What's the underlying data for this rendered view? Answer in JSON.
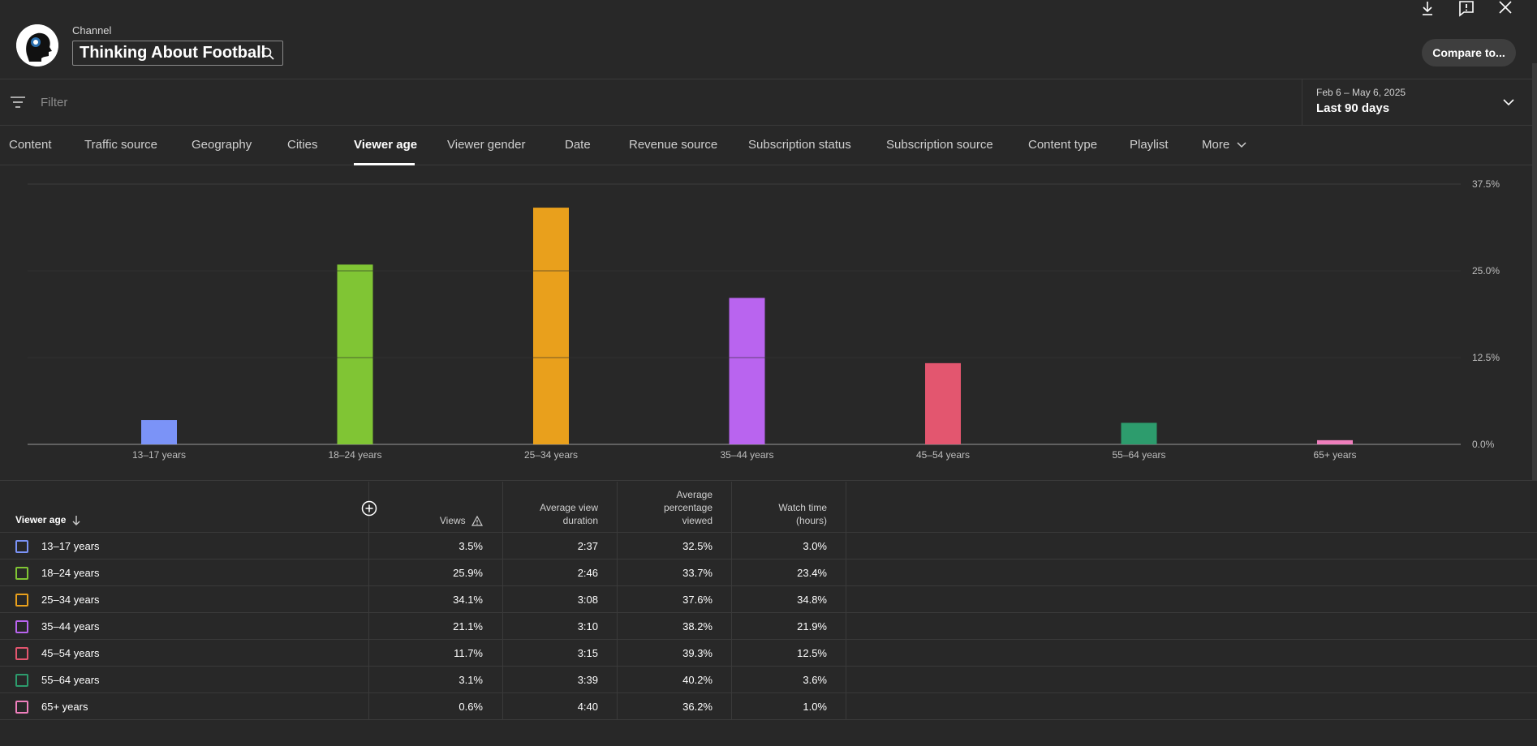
{
  "header": {
    "channel_label": "Channel",
    "channel_name": "Thinking About Football",
    "compare_label": "Compare to..."
  },
  "filter": {
    "placeholder": "Filter"
  },
  "date": {
    "range": "Feb 6 – May 6, 2025",
    "label": "Last 90 days"
  },
  "tabs": [
    "Content",
    "Traffic source",
    "Geography",
    "Cities",
    "Viewer age",
    "Viewer gender",
    "Date",
    "Revenue source",
    "Subscription status",
    "Subscription source",
    "Content type",
    "Playlist",
    "More"
  ],
  "active_tab": "Viewer age",
  "chart_data": {
    "type": "bar",
    "categories": [
      "13–17 years",
      "18–24 years",
      "25–34 years",
      "35–44 years",
      "45–54 years",
      "55–64 years",
      "65+ years"
    ],
    "values": [
      3.5,
      25.9,
      34.1,
      21.1,
      11.7,
      3.1,
      0.6
    ],
    "colors": [
      "#7b93f7",
      "#80c534",
      "#e9a01c",
      "#b964ef",
      "#e3566f",
      "#2d9c6d",
      "#ef7fbd"
    ],
    "y_ticks": [
      "37.5%",
      "25.0%",
      "12.5%",
      "0.0%"
    ],
    "ylim": [
      0,
      37.5
    ],
    "grid": true,
    "axis_position": "right"
  },
  "table": {
    "first_header": "Viewer age",
    "headers": {
      "views": "Views",
      "avd": [
        "Average view",
        "duration"
      ],
      "apv": [
        "Average",
        "percentage",
        "viewed"
      ],
      "wt": [
        "Watch time",
        "(hours)"
      ]
    },
    "rows": [
      {
        "label": "13–17 years",
        "color": "#7b93f7",
        "views": "3.5%",
        "avd": "2:37",
        "apv": "32.5%",
        "wt": "3.0%"
      },
      {
        "label": "18–24 years",
        "color": "#80c534",
        "views": "25.9%",
        "avd": "2:46",
        "apv": "33.7%",
        "wt": "23.4%"
      },
      {
        "label": "25–34 years",
        "color": "#e9a01c",
        "views": "34.1%",
        "avd": "3:08",
        "apv": "37.6%",
        "wt": "34.8%"
      },
      {
        "label": "35–44 years",
        "color": "#b964ef",
        "views": "21.1%",
        "avd": "3:10",
        "apv": "38.2%",
        "wt": "21.9%"
      },
      {
        "label": "45–54 years",
        "color": "#e3566f",
        "views": "11.7%",
        "avd": "3:15",
        "apv": "39.3%",
        "wt": "12.5%"
      },
      {
        "label": "55–64 years",
        "color": "#2d9c6d",
        "views": "3.1%",
        "avd": "3:39",
        "apv": "40.2%",
        "wt": "3.6%"
      },
      {
        "label": "65+ years",
        "color": "#ef7fbd",
        "views": "0.6%",
        "avd": "4:40",
        "apv": "36.2%",
        "wt": "1.0%"
      }
    ]
  },
  "icons": [
    "download-icon",
    "feedback-icon",
    "close-icon",
    "search-icon",
    "filter-icon",
    "chevron-down-icon",
    "sort-down-icon",
    "add-column-icon",
    "warning-icon",
    "channel-avatar"
  ]
}
